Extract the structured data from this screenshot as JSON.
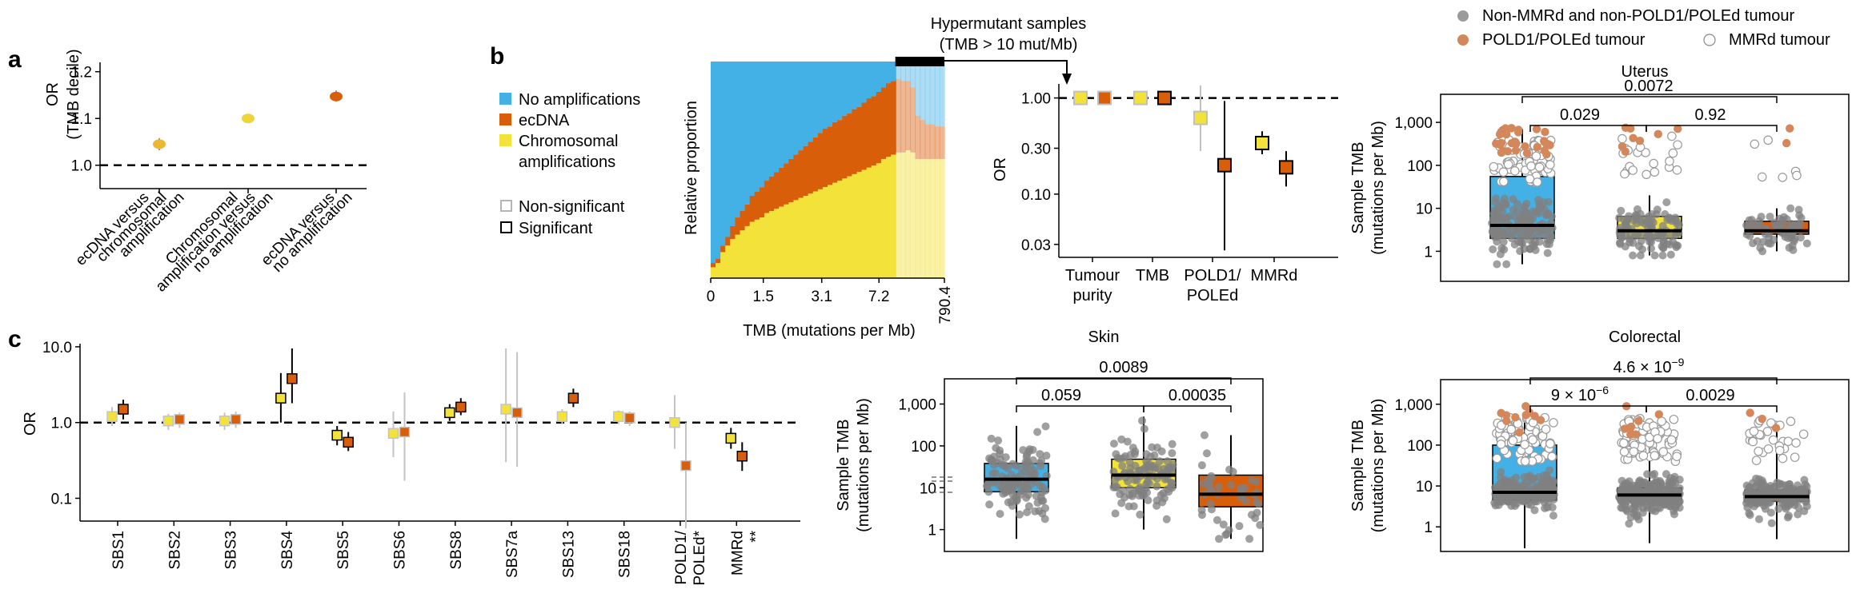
{
  "panel_letters": {
    "a": "a",
    "b": "b",
    "c": "c"
  },
  "colors": {
    "no_amp": "#44b1e6",
    "ecdna": "#d95e0a",
    "chrom": "#f2e23a",
    "grey_point": "#7a7a7a",
    "pole_point": "#d3875a",
    "mmr_point": "#ffffff",
    "nonsig": "#c8c8c8",
    "axis": "#000000"
  },
  "chart_data": [
    {
      "id": "a",
      "type": "scatter",
      "ylabel_lines": [
        "OR",
        "(TMB decile)"
      ],
      "ylim": [
        0.95,
        1.22
      ],
      "yticks": [
        1.0,
        1.1,
        1.2
      ],
      "yticklabels": [
        "1.0",
        "1.1",
        "1.2"
      ],
      "reference_line": 1.0,
      "categories": [
        {
          "label_lines": [
            "ecDNA versus",
            "chromosomal",
            "amplification"
          ],
          "or": 1.045,
          "lo": 1.032,
          "hi": 1.058,
          "color": "#ecb832"
        },
        {
          "label_lines": [
            "Chromosomal",
            "amplification versus",
            "no amplification"
          ],
          "or": 1.1,
          "lo": 1.09,
          "hi": 1.11,
          "color": "#f0d53a"
        },
        {
          "label_lines": [
            "ecDNA versus",
            "no amplification"
          ],
          "or": 1.147,
          "lo": 1.136,
          "hi": 1.16,
          "color": "#d95e0a"
        }
      ]
    },
    {
      "id": "b_stacked",
      "type": "area",
      "ylabel": "Relative proportion",
      "xlabel": "TMB (mutations per Mb)",
      "xticklabels": [
        "0",
        "1.5",
        "3.1",
        "7.2",
        "790.4"
      ],
      "legend": [
        {
          "label_lines": [
            "No amplifications"
          ],
          "color": "#44b1e6"
        },
        {
          "label_lines": [
            "ecDNA"
          ],
          "color": "#d95e0a"
        },
        {
          "label_lines": [
            "Chromosomal",
            "amplifications"
          ],
          "color": "#f2e23a"
        }
      ],
      "significance_legend": [
        {
          "label": "Non-significant",
          "style": "nonsig"
        },
        {
          "label": "Significant",
          "style": "sig"
        }
      ],
      "hypermutant_label_lines": [
        "Hypermutant samples",
        "(TMB > 10 mut/Mb)"
      ],
      "hypermutant_fraction_start": 0.79,
      "series": [
        {
          "name": "Chromosomal amplifications",
          "values": [
            0.05,
            0.07,
            0.12,
            0.15,
            0.18,
            0.2,
            0.22,
            0.24,
            0.26,
            0.27,
            0.28,
            0.3,
            0.31,
            0.32,
            0.33,
            0.34,
            0.35,
            0.36,
            0.37,
            0.38,
            0.39,
            0.4,
            0.41,
            0.42,
            0.43,
            0.44,
            0.45,
            0.46,
            0.47,
            0.48,
            0.49,
            0.5,
            0.51,
            0.52,
            0.53,
            0.55,
            0.56,
            0.57,
            0.58,
            0.58,
            0.59,
            0.58,
            0.55,
            0.55,
            0.55,
            0.55,
            0.55,
            0.55
          ]
        },
        {
          "name": "ecDNA",
          "values": [
            0.02,
            0.02,
            0.03,
            0.04,
            0.06,
            0.08,
            0.09,
            0.1,
            0.12,
            0.13,
            0.14,
            0.15,
            0.16,
            0.17,
            0.18,
            0.19,
            0.2,
            0.21,
            0.22,
            0.23,
            0.24,
            0.25,
            0.26,
            0.27,
            0.27,
            0.28,
            0.28,
            0.29,
            0.29,
            0.3,
            0.3,
            0.31,
            0.32,
            0.32,
            0.33,
            0.33,
            0.34,
            0.34,
            0.34,
            0.33,
            0.32,
            0.3,
            0.2,
            0.18,
            0.16,
            0.16,
            0.15,
            0.15
          ]
        }
      ]
    },
    {
      "id": "b_or",
      "type": "scatter",
      "ylabel": "OR",
      "yscale": "log",
      "ylim": [
        0.022,
        1.4
      ],
      "yticks": [
        1.0,
        0.3,
        0.1,
        0.03
      ],
      "yticklabels": [
        "1.00",
        "0.30",
        "0.10",
        "0.03"
      ],
      "reference_line": 1.0,
      "categories": [
        {
          "label_lines": [
            "Tumour",
            "purity"
          ],
          "points": [
            {
              "or": 1.0,
              "lo": 0.98,
              "hi": 1.02,
              "color": "#f2e23a",
              "significant": false
            },
            {
              "or": 1.0,
              "lo": 0.98,
              "hi": 1.02,
              "color": "#d95e0a",
              "significant": false
            }
          ]
        },
        {
          "label_lines": [
            "TMB"
          ],
          "points": [
            {
              "or": 1.0,
              "lo": 0.99,
              "hi": 1.01,
              "color": "#f2e23a",
              "significant": false
            },
            {
              "or": 1.0,
              "lo": 0.99,
              "hi": 1.01,
              "color": "#d95e0a",
              "significant": true
            }
          ]
        },
        {
          "label_lines": [
            "POLD1/",
            "POLEd"
          ],
          "points": [
            {
              "or": 0.62,
              "lo": 0.28,
              "hi": 1.35,
              "color": "#f2e23a",
              "significant": false
            },
            {
              "or": 0.2,
              "lo": 0.026,
              "hi": 0.93,
              "color": "#d95e0a",
              "significant": true
            }
          ]
        },
        {
          "label_lines": [
            "MMRd"
          ],
          "points": [
            {
              "or": 0.34,
              "lo": 0.26,
              "hi": 0.45,
              "color": "#f2e23a",
              "significant": true
            },
            {
              "or": 0.19,
              "lo": 0.12,
              "hi": 0.28,
              "color": "#d95e0a",
              "significant": true
            }
          ]
        }
      ]
    },
    {
      "id": "c",
      "type": "scatter",
      "ylabel": "OR",
      "yscale": "log",
      "ylim": [
        0.05,
        11
      ],
      "yticks": [
        10.0,
        1.0,
        0.1
      ],
      "yticklabels": [
        "10.0",
        "1.0",
        "0.1"
      ],
      "reference_line": 1.0,
      "categories": [
        {
          "label": "SBS1",
          "y": {
            "or": 1.2,
            "lo": 0.9,
            "hi": 1.6,
            "sig": false
          },
          "e": {
            "or": 1.5,
            "lo": 1.1,
            "hi": 2.0,
            "sig": true
          }
        },
        {
          "label": "SBS2",
          "y": {
            "or": 1.05,
            "lo": 0.8,
            "hi": 1.3,
            "sig": false
          },
          "e": {
            "or": 1.1,
            "lo": 0.85,
            "hi": 1.35,
            "sig": false
          }
        },
        {
          "label": "SBS3",
          "y": {
            "or": 1.05,
            "lo": 0.8,
            "hi": 1.35,
            "sig": false
          },
          "e": {
            "or": 1.1,
            "lo": 0.85,
            "hi": 1.4,
            "sig": false
          }
        },
        {
          "label": "SBS4",
          "y": {
            "or": 2.1,
            "lo": 1.0,
            "hi": 4.5,
            "sig": true
          },
          "e": {
            "or": 3.8,
            "lo": 1.8,
            "hi": 9.5,
            "sig": true
          }
        },
        {
          "label": "SBS5",
          "y": {
            "or": 0.68,
            "lo": 0.5,
            "hi": 0.9,
            "sig": true
          },
          "e": {
            "or": 0.55,
            "lo": 0.42,
            "hi": 0.75,
            "sig": true
          }
        },
        {
          "label": "SBS6",
          "y": {
            "or": 0.72,
            "lo": 0.35,
            "hi": 1.4,
            "sig": false
          },
          "e": {
            "or": 0.75,
            "lo": 0.17,
            "hi": 2.5,
            "sig": false
          }
        },
        {
          "label": "SBS8",
          "y": {
            "or": 1.35,
            "lo": 1.05,
            "hi": 1.75,
            "sig": true
          },
          "e": {
            "or": 1.6,
            "lo": 1.25,
            "hi": 2.1,
            "sig": true
          }
        },
        {
          "label": "SBS7a",
          "y": {
            "or": 1.5,
            "lo": 0.3,
            "hi": 9.5,
            "sig": false
          },
          "e": {
            "or": 1.35,
            "lo": 0.26,
            "hi": 8.5,
            "sig": false
          }
        },
        {
          "label": "SBS13",
          "y": {
            "or": 1.2,
            "lo": 0.95,
            "hi": 1.5,
            "sig": false
          },
          "e": {
            "or": 2.1,
            "lo": 1.6,
            "hi": 2.8,
            "sig": true
          }
        },
        {
          "label": "SBS18",
          "y": {
            "or": 1.2,
            "lo": 0.95,
            "hi": 1.45,
            "sig": false
          },
          "e": {
            "or": 1.15,
            "lo": 0.9,
            "hi": 1.4,
            "sig": false
          }
        },
        {
          "label": "POLD1/",
          "label2": "POLEd*",
          "y": {
            "or": 1.0,
            "lo": 0.45,
            "hi": 2.3,
            "sig": false
          },
          "e": {
            "or": 0.27,
            "lo": 0.04,
            "hi": 1.0,
            "sig": false
          }
        },
        {
          "label": "MMRd",
          "label2": "**",
          "y": {
            "or": 0.62,
            "lo": 0.45,
            "hi": 0.85,
            "sig": true
          },
          "e": {
            "or": 0.36,
            "lo": 0.23,
            "hi": 0.55,
            "sig": true
          }
        }
      ]
    },
    {
      "id": "box_skin",
      "type": "scatter",
      "title": "Skin",
      "ylabel_lines": [
        "Sample TMB",
        "(mutations per Mb)"
      ],
      "yscale": "log",
      "yticks": [
        1000,
        100,
        10,
        1
      ],
      "yticklabels": [
        "1,000",
        "100",
        "10",
        "1"
      ],
      "groups": [
        {
          "name": "No amplification",
          "color": "#44b1e6",
          "q1": 8,
          "median": 16,
          "q3": 38,
          "wmin": 0.6,
          "wmax": 300
        },
        {
          "name": "Chromosomal amplification",
          "color": "#f2e23a",
          "q1": 10,
          "median": 20,
          "q3": 48,
          "wmin": 1.0,
          "wmax": 500
        },
        {
          "name": "ecDNA",
          "color": "#d95e0a",
          "q1": 3.5,
          "median": 7,
          "q3": 20,
          "wmin": 0.6,
          "wmax": 180
        }
      ],
      "comparisons": [
        {
          "label": "0.059",
          "from": 0,
          "to": 1
        },
        {
          "label": "0.00035",
          "from": 1,
          "to": 2
        },
        {
          "label": "0.0089",
          "from": 0,
          "to": 2
        }
      ]
    },
    {
      "id": "box_uterus",
      "type": "scatter",
      "title": "Uterus",
      "ylabel_lines": [
        "Sample TMB",
        "(mutations per Mb)"
      ],
      "yscale": "log",
      "yticks": [
        1000,
        100,
        10,
        1
      ],
      "yticklabels": [
        "1,000",
        "100",
        "10",
        "1"
      ],
      "legend": [
        {
          "label": "Non-MMRd and non-POLD1/POLEd tumour",
          "style": "grey"
        },
        {
          "label": "POLD1/POLEd tumour",
          "style": "pole"
        },
        {
          "label": "MMRd tumour",
          "style": "mmr"
        }
      ],
      "groups": [
        {
          "name": "No amplification",
          "color": "#44b1e6",
          "q1": 2,
          "median": 4,
          "q3": 55,
          "wmin": 0.5,
          "wmax": 700
        },
        {
          "name": "Chromosomal amplification",
          "color": "#f2e23a",
          "q1": 2,
          "median": 3,
          "q3": 6.5,
          "wmin": 0.8,
          "wmax": 20
        },
        {
          "name": "ecDNA",
          "color": "#d95e0a",
          "q1": 2.5,
          "median": 3,
          "q3": 5,
          "wmin": 1,
          "wmax": 10
        }
      ],
      "comparisons": [
        {
          "label": "0.029",
          "from": 0,
          "to": 1
        },
        {
          "label": "0.92",
          "from": 1,
          "to": 2
        },
        {
          "label": "0.0072",
          "from": 0,
          "to": 2
        }
      ]
    },
    {
      "id": "box_colorectal",
      "type": "scatter",
      "title": "Colorectal",
      "ylabel_lines": [
        "Sample TMB",
        "(mutations per Mb)"
      ],
      "yscale": "log",
      "yticks": [
        1000,
        100,
        10,
        1
      ],
      "yticklabels": [
        "1,000",
        "100",
        "10",
        "1"
      ],
      "groups": [
        {
          "name": "No amplification",
          "color": "#44b1e6",
          "q1": 4.5,
          "median": 7,
          "q3": 100,
          "wmin": 0.3,
          "wmax": 400
        },
        {
          "name": "Chromosomal amplification",
          "color": "#f2e23a",
          "q1": 4.5,
          "median": 6,
          "q3": 9,
          "wmin": 0.4,
          "wmax": 150
        },
        {
          "name": "ecDNA",
          "color": "#d95e0a",
          "q1": 4.2,
          "median": 5.5,
          "q3": 8,
          "wmin": 0.5,
          "wmax": 300
        }
      ],
      "comparisons": [
        {
          "label": "9 × 10",
          "exp": "−6",
          "from": 0,
          "to": 1
        },
        {
          "label": "0.0029",
          "from": 1,
          "to": 2
        },
        {
          "label": "4.6 × 10",
          "exp": "−9",
          "from": 0,
          "to": 2
        }
      ]
    }
  ]
}
